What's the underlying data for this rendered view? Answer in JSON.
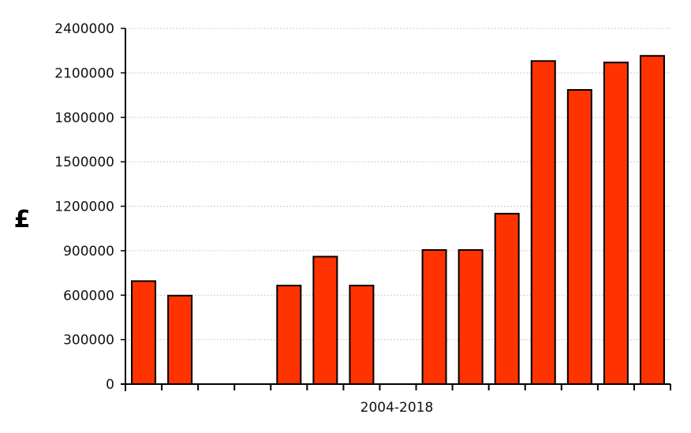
{
  "chart_data": {
    "type": "bar",
    "xlabel": "2004-2018",
    "ylabel": "£",
    "ylim": [
      0,
      2400000
    ],
    "yticks": [
      0,
      300000,
      600000,
      900000,
      1200000,
      1500000,
      1800000,
      2100000,
      2400000
    ],
    "ytick_labels": [
      "0",
      "300000",
      "600000",
      "900000",
      "1200000",
      "1500000",
      "1800000",
      "2100000",
      "2400000"
    ],
    "values": [
      695000,
      597000,
      0,
      0,
      665000,
      860000,
      665000,
      0,
      905000,
      905000,
      1150000,
      2180000,
      1985000,
      2170000,
      2215000
    ],
    "grid": true,
    "colors": {
      "bar": "#ff3300",
      "bar_edge": "#000000",
      "grid": "#cccccc",
      "axis": "#000000"
    }
  }
}
